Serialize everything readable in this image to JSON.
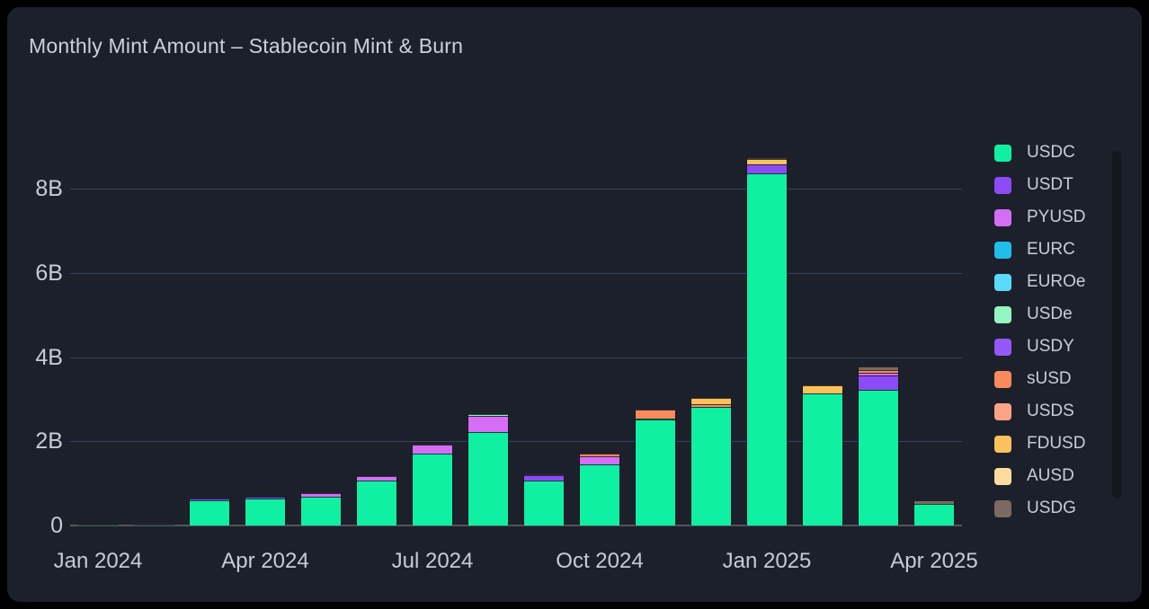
{
  "header": {
    "title": "Monthly Mint Amount – Stablecoin Mint & Burn"
  },
  "colors": {
    "page_bg": "#000000",
    "card_bg": "#1C202B",
    "title_text": "#CBD1DB",
    "axis_text": "#C6CCD6",
    "gridline": "#35435C",
    "baseline": "#53565C",
    "legend_text": "#C7CDD7",
    "scrollbar": "#14171E"
  },
  "chart_data": {
    "type": "bar",
    "stacked": true,
    "title": "Monthly Mint Amount – Stablecoin Mint & Burn",
    "unit": "billions",
    "ylim": [
      0,
      9
    ],
    "grid": true,
    "legend_position": "right",
    "categories": [
      "Jan 2024",
      "Feb 2024",
      "Mar 2024",
      "Apr 2024",
      "May 2024",
      "Jun 2024",
      "Jul 2024",
      "Aug 2024",
      "Sep 2024",
      "Oct 2024",
      "Nov 2024",
      "Dec 2024",
      "Jan 2025",
      "Feb 2025",
      "Mar 2025",
      "Apr 2025"
    ],
    "x_tick_indices": [
      0,
      3,
      6,
      9,
      12,
      15
    ],
    "y_ticks": [
      {
        "value": 0,
        "label": "0"
      },
      {
        "value": 2,
        "label": "2B"
      },
      {
        "value": 4,
        "label": "4B"
      },
      {
        "value": 6,
        "label": "6B"
      },
      {
        "value": 8,
        "label": "8B"
      }
    ],
    "series": [
      {
        "name": "USDC",
        "color": "#0FF0A3",
        "values": [
          0.02,
          0.01,
          0.6,
          0.64,
          0.68,
          1.07,
          1.72,
          2.23,
          1.07,
          1.45,
          2.52,
          2.82,
          8.37,
          3.14,
          3.23,
          0.52
        ]
      },
      {
        "name": "USDT",
        "color": "#8C4BF5",
        "values": [
          0,
          0.04,
          0.04,
          0.04,
          0,
          0,
          0,
          0,
          0.12,
          0,
          0,
          0,
          0.21,
          0,
          0.34,
          0
        ]
      },
      {
        "name": "PYUSD",
        "color": "#D36EF5",
        "values": [
          0,
          0,
          0,
          0,
          0.09,
          0.11,
          0.21,
          0.37,
          0.03,
          0.19,
          0,
          0,
          0,
          0,
          0.05,
          0
        ]
      },
      {
        "name": "EURC",
        "color": "#1FBDE8",
        "values": [
          0,
          0,
          0,
          0,
          0,
          0,
          0,
          0,
          0,
          0,
          0,
          0,
          0,
          0,
          0,
          0
        ]
      },
      {
        "name": "EUROe",
        "color": "#5BD9F8",
        "values": [
          0,
          0,
          0,
          0,
          0,
          0,
          0,
          0,
          0,
          0,
          0,
          0,
          0,
          0,
          0,
          0
        ]
      },
      {
        "name": "USDe",
        "color": "#93F5C1",
        "values": [
          0,
          0,
          0,
          0,
          0,
          0,
          0,
          0.04,
          0,
          0,
          0.03,
          0,
          0,
          0,
          0,
          0
        ]
      },
      {
        "name": "USDY",
        "color": "#9558F8",
        "values": [
          0,
          0,
          0,
          0,
          0,
          0,
          0,
          0,
          0,
          0,
          0,
          0,
          0,
          0,
          0,
          0
        ]
      },
      {
        "name": "sUSD",
        "color": "#F98A5C",
        "values": [
          0,
          0,
          0,
          0,
          0,
          0,
          0,
          0,
          0,
          0.06,
          0.21,
          0.06,
          0,
          0,
          0.08,
          0
        ]
      },
      {
        "name": "USDS",
        "color": "#FBA287",
        "values": [
          0,
          0,
          0,
          0,
          0,
          0,
          0,
          0,
          0,
          0,
          0,
          0,
          0,
          0,
          0,
          0
        ]
      },
      {
        "name": "FDUSD",
        "color": "#FBC25C",
        "values": [
          0,
          0,
          0,
          0,
          0,
          0,
          0,
          0,
          0,
          0,
          0,
          0.16,
          0.13,
          0.18,
          0,
          0
        ]
      },
      {
        "name": "AUSD",
        "color": "#FCDC9E",
        "values": [
          0,
          0,
          0,
          0,
          0,
          0,
          0,
          0,
          0,
          0,
          0,
          0,
          0.03,
          0,
          0,
          0
        ]
      },
      {
        "name": "USDG",
        "color": "#7A6A5F",
        "values": [
          0,
          0,
          0,
          0,
          0,
          0,
          0,
          0,
          0,
          0,
          0,
          0,
          0,
          0,
          0.09,
          0.08
        ]
      }
    ]
  }
}
